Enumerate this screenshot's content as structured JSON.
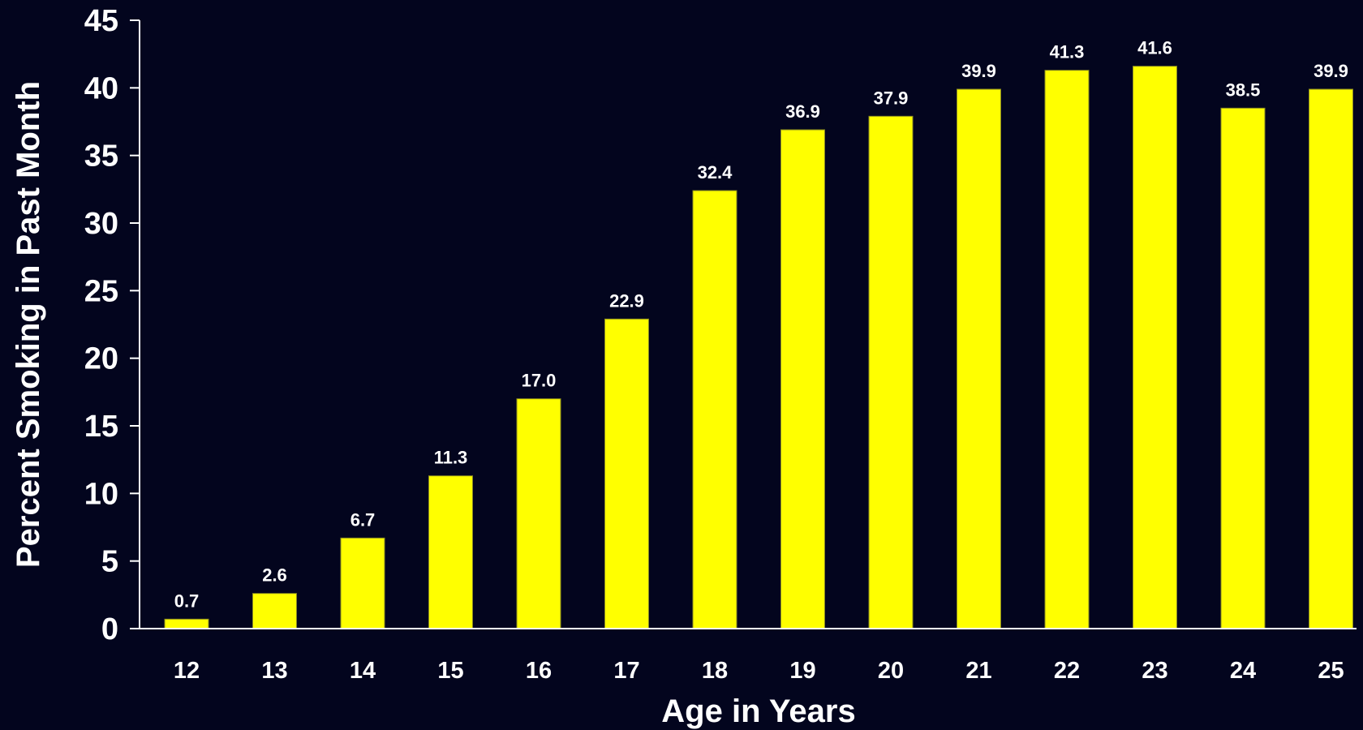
{
  "chart_data": {
    "type": "bar",
    "title": "",
    "xlabel": "Age in Years",
    "ylabel": "Percent Smoking in Past Month",
    "categories": [
      "12",
      "13",
      "14",
      "15",
      "16",
      "17",
      "18",
      "19",
      "20",
      "21",
      "22",
      "23",
      "24",
      "25"
    ],
    "values": [
      0.7,
      2.6,
      6.7,
      11.3,
      17.0,
      22.9,
      32.4,
      36.9,
      37.9,
      39.9,
      41.3,
      41.6,
      38.5,
      39.9
    ],
    "data_labels": [
      "0.7",
      "2.6",
      "6.7",
      "11.3",
      "17.0",
      "22.9",
      "32.4",
      "36.9",
      "37.9",
      "39.9",
      "41.3",
      "41.6",
      "38.5",
      "39.9"
    ],
    "ylim": [
      0,
      45
    ],
    "yticks": [
      0,
      5,
      10,
      15,
      20,
      25,
      30,
      35,
      40,
      45
    ],
    "grid": false,
    "legend": "none",
    "colors": {
      "background": "#03051e",
      "bar": "#ffff00",
      "bar_edge": "#8a8a20",
      "axis": "#ffffff",
      "text": "#ffffff"
    }
  }
}
